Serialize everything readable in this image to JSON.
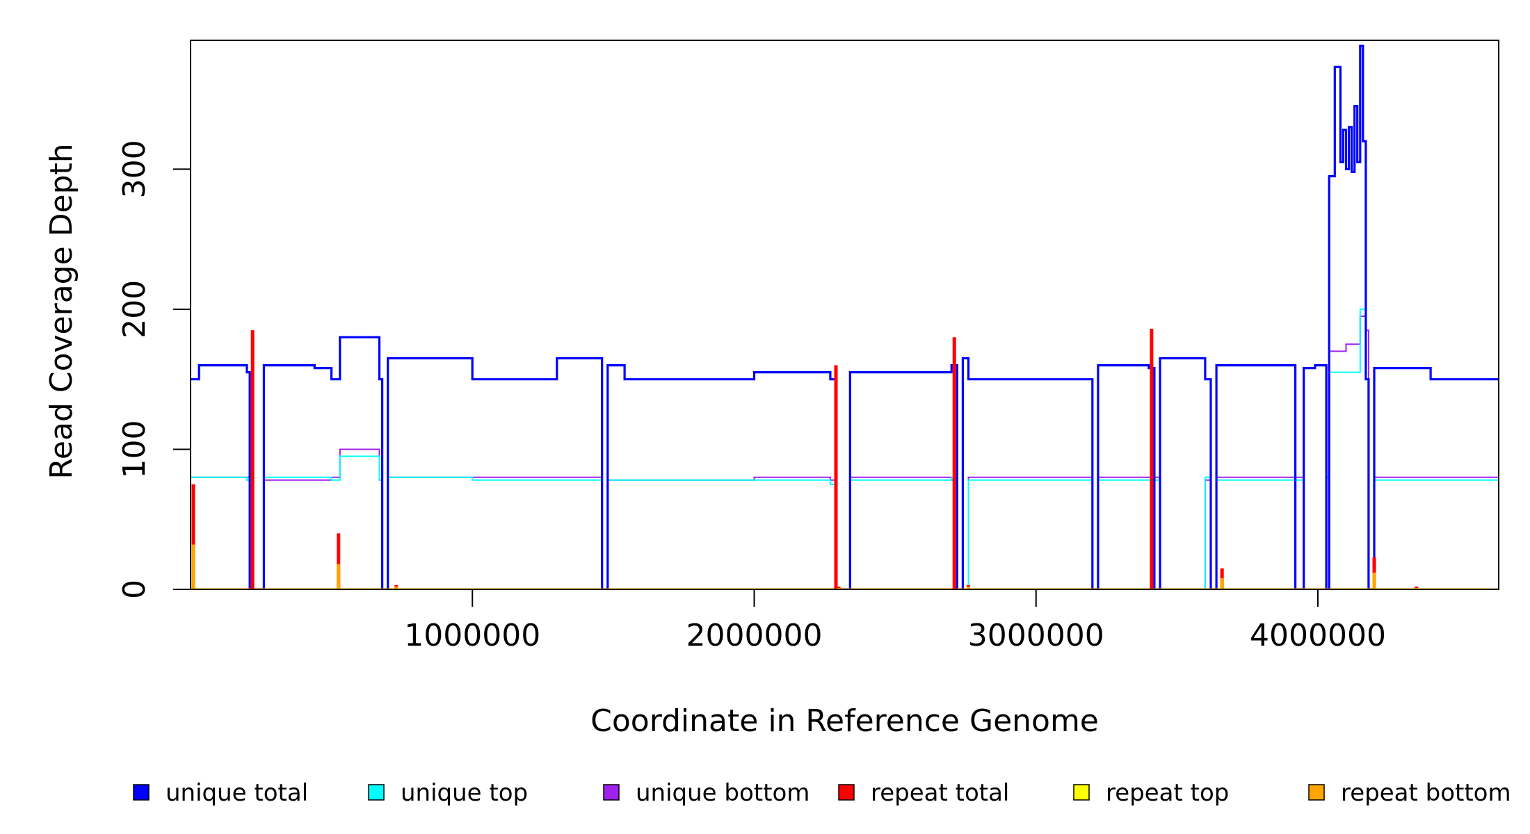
{
  "chart_data": {
    "type": "line",
    "title": "",
    "xlabel": "Coordinate in Reference Genome",
    "ylabel": "Read Coverage Depth",
    "xlim": [
      0,
      4641652
    ],
    "ylim": [
      0,
      392
    ],
    "x_ticks": [
      1000000,
      2000000,
      3000000,
      4000000
    ],
    "x_tick_labels": [
      "1000000",
      "2000000",
      "3000000",
      "4000000"
    ],
    "y_ticks": [
      0,
      100,
      200,
      300
    ],
    "y_tick_labels": [
      "0",
      "100",
      "200",
      "300"
    ],
    "grid": false,
    "legend_position": "bottom",
    "series": [
      {
        "name": "unique total",
        "color": "#0000ff",
        "x": [
          0,
          30000,
          200000,
          210000,
          260000,
          440000,
          500000,
          530000,
          670000,
          680000,
          700000,
          1000000,
          1300000,
          1460000,
          1480000,
          1540000,
          2000000,
          2270000,
          2290000,
          2340000,
          2700000,
          2720000,
          2740000,
          2760000,
          3000000,
          3180000,
          3200000,
          3220000,
          3400000,
          3420000,
          3440000,
          3600000,
          3620000,
          3640000,
          3900000,
          3920000,
          3950000,
          3990000,
          4030000,
          4040000,
          4060000,
          4080000,
          4090000,
          4100000,
          4110000,
          4120000,
          4130000,
          4140000,
          4150000,
          4160000,
          4170000,
          4180000,
          4200000,
          4400000,
          4641652
        ],
        "values": [
          150,
          160,
          155,
          0,
          160,
          158,
          150,
          180,
          150,
          0,
          165,
          150,
          165,
          0,
          160,
          150,
          155,
          150,
          0,
          155,
          160,
          0,
          165,
          150,
          150,
          150,
          0,
          160,
          158,
          0,
          165,
          150,
          0,
          160,
          160,
          0,
          158,
          160,
          0,
          295,
          373,
          305,
          328,
          300,
          330,
          298,
          345,
          305,
          388,
          320,
          150,
          0,
          158,
          150,
          150
        ]
      },
      {
        "name": "unique top",
        "color": "#00ffff",
        "x": [
          0,
          200000,
          210000,
          260000,
          500000,
          530000,
          670000,
          680000,
          700000,
          1000000,
          1460000,
          1480000,
          2000000,
          2270000,
          2290000,
          2340000,
          2700000,
          2720000,
          2760000,
          3180000,
          3200000,
          3220000,
          3420000,
          3440000,
          3600000,
          3620000,
          3640000,
          3920000,
          3950000,
          4030000,
          4040000,
          4100000,
          4150000,
          4170000,
          4180000,
          4200000,
          4641652
        ],
        "values": [
          80,
          78,
          0,
          80,
          78,
          95,
          78,
          0,
          80,
          78,
          0,
          78,
          78,
          75,
          0,
          78,
          80,
          0,
          78,
          78,
          0,
          78,
          78,
          0,
          80,
          0,
          78,
          78,
          0,
          80,
          155,
          155,
          200,
          150,
          0,
          78,
          70
        ]
      },
      {
        "name": "unique bottom",
        "color": "#a020f0",
        "x": [
          0,
          200000,
          210000,
          260000,
          500000,
          530000,
          670000,
          680000,
          700000,
          1000000,
          1460000,
          1480000,
          2000000,
          2270000,
          2290000,
          2340000,
          2700000,
          2720000,
          2760000,
          3180000,
          3200000,
          3220000,
          3420000,
          3440000,
          3600000,
          3620000,
          3640000,
          3920000,
          3950000,
          4030000,
          4040000,
          4100000,
          4150000,
          4170000,
          4180000,
          4200000,
          4641652
        ],
        "values": [
          80,
          80,
          0,
          78,
          80,
          100,
          78,
          0,
          80,
          80,
          0,
          78,
          80,
          78,
          0,
          80,
          78,
          0,
          80,
          80,
          0,
          80,
          80,
          0,
          78,
          0,
          80,
          80,
          0,
          80,
          170,
          175,
          195,
          185,
          0,
          80,
          80
        ]
      },
      {
        "name": "repeat total",
        "color": "#ff0000",
        "x": [
          10000,
          220000,
          525000,
          730000,
          2290000,
          2300000,
          2710000,
          2760000,
          3410000,
          3660000,
          4200000,
          4350000
        ],
        "values": [
          75,
          185,
          40,
          3,
          160,
          2,
          180,
          3,
          186,
          15,
          23,
          2
        ]
      },
      {
        "name": "repeat top",
        "color": "#ffff00",
        "x": [],
        "values": []
      },
      {
        "name": "repeat bottom",
        "color": "#ffa500",
        "x": [
          10000,
          525000,
          730000,
          2300000,
          2760000,
          3660000,
          4200000,
          4350000
        ],
        "values": [
          32,
          18,
          2,
          1,
          2,
          8,
          12,
          1
        ]
      }
    ]
  }
}
